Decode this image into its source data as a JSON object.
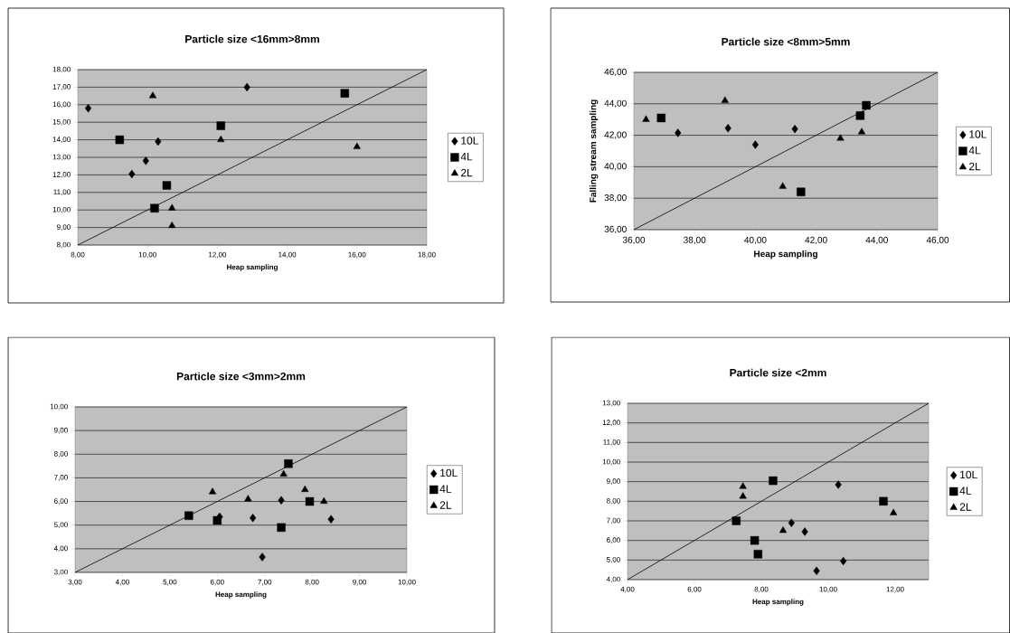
{
  "chart_data": [
    {
      "type": "scatter",
      "title": "Particle size <16mm>8mm",
      "xlabel": "Heap sampling",
      "xlim": [
        8,
        18
      ],
      "ylim": [
        8,
        18
      ],
      "grid": "y",
      "legend": "right",
      "xticks": [
        {
          "value": 8,
          "label": "8,00"
        },
        {
          "value": 10,
          "label": "10,00"
        },
        {
          "value": 12,
          "label": "12,00"
        },
        {
          "value": 14,
          "label": "14,00"
        },
        {
          "value": 16,
          "label": "16,00"
        },
        {
          "value": 18,
          "label": "18,00"
        }
      ],
      "yticks": [
        {
          "value": 8,
          "label": "8,00"
        },
        {
          "value": 9,
          "label": "9,00"
        },
        {
          "value": 10,
          "label": "10,00"
        },
        {
          "value": 11,
          "label": "11,00"
        },
        {
          "value": 12,
          "label": "12,00"
        },
        {
          "value": 13,
          "label": "13,00"
        },
        {
          "value": 14,
          "label": "14,00"
        },
        {
          "value": 15,
          "label": "15,00"
        },
        {
          "value": 16,
          "label": "16,00"
        },
        {
          "value": 17,
          "label": "17,00"
        },
        {
          "value": 18,
          "label": "18,00"
        }
      ],
      "series": [
        {
          "name": "10L",
          "color": "#000000",
          "marker": "diamond",
          "x": [
            8.3,
            12.85,
            10.3,
            9.95,
            9.55
          ],
          "values": [
            15.8,
            17.0,
            13.9,
            12.8,
            12.05
          ]
        },
        {
          "name": "4L",
          "color": "#000000",
          "marker": "square",
          "x": [
            9.2,
            15.65,
            12.1,
            10.55,
            10.2
          ],
          "values": [
            14.0,
            16.65,
            14.8,
            11.4,
            10.1
          ]
        },
        {
          "name": "2L",
          "color": "#000000",
          "marker": "triangle",
          "x": [
            10.15,
            12.1,
            16.0,
            10.7,
            10.7
          ],
          "values": [
            16.5,
            14.0,
            13.6,
            10.1,
            9.1
          ]
        },
        {
          "type": "line",
          "color": "#000000",
          "marker": "none",
          "x": [
            8,
            18
          ],
          "values": [
            8,
            18
          ]
        }
      ]
    },
    {
      "type": "scatter",
      "title": "Particle size <8mm>5mm",
      "xlabel": "Heap sampling",
      "ylabel": "Falling stream sampling",
      "xlim": [
        36,
        46
      ],
      "ylim": [
        36,
        46
      ],
      "grid": "y",
      "legend": "right",
      "xticks": [
        {
          "value": 36,
          "label": "36,00"
        },
        {
          "value": 38,
          "label": "38,00"
        },
        {
          "value": 40,
          "label": "40,00"
        },
        {
          "value": 42,
          "label": "42,00"
        },
        {
          "value": 44,
          "label": "44,00"
        },
        {
          "value": 46,
          "label": "46,00"
        }
      ],
      "yticks": [
        {
          "value": 36,
          "label": "36,00"
        },
        {
          "value": 38,
          "label": "38,00"
        },
        {
          "value": 40,
          "label": "40,00"
        },
        {
          "value": 42,
          "label": "42,00"
        },
        {
          "value": 44,
          "label": "44,00"
        },
        {
          "value": 46,
          "label": "46,00"
        }
      ],
      "series": [
        {
          "name": "10L",
          "color": "#000000",
          "marker": "diamond",
          "x": [
            37.45,
            39.1,
            40.0,
            41.3
          ],
          "values": [
            42.15,
            42.45,
            41.4,
            42.4
          ]
        },
        {
          "name": "4L",
          "color": "#000000",
          "marker": "square",
          "x": [
            36.9,
            41.5,
            43.45,
            43.65
          ],
          "values": [
            43.1,
            38.4,
            43.25,
            43.9
          ]
        },
        {
          "name": "2L",
          "color": "#000000",
          "marker": "triangle",
          "x": [
            36.4,
            39.0,
            40.9,
            42.8,
            43.5
          ],
          "values": [
            43.0,
            44.2,
            38.75,
            41.8,
            42.2
          ]
        },
        {
          "type": "line",
          "color": "#000000",
          "marker": "none",
          "x": [
            36,
            46
          ],
          "values": [
            36,
            46
          ]
        }
      ]
    },
    {
      "type": "scatter",
      "title": "Particle size <3mm>2mm",
      "xlabel": "Heap sampling",
      "xlim": [
        3,
        10
      ],
      "ylim": [
        3,
        10
      ],
      "grid": "y",
      "legend": "right",
      "xticks": [
        {
          "value": 3,
          "label": "3,00"
        },
        {
          "value": 4,
          "label": "4,00"
        },
        {
          "value": 5,
          "label": "5,00"
        },
        {
          "value": 6,
          "label": "6,00"
        },
        {
          "value": 7,
          "label": "7,00"
        },
        {
          "value": 8,
          "label": "8,00"
        },
        {
          "value": 9,
          "label": "9,00"
        },
        {
          "value": 10,
          "label": "10,00"
        }
      ],
      "yticks": [
        {
          "value": 3,
          "label": "3,00"
        },
        {
          "value": 4,
          "label": "4,00"
        },
        {
          "value": 5,
          "label": "5,00"
        },
        {
          "value": 6,
          "label": "6,00"
        },
        {
          "value": 7,
          "label": "7,00"
        },
        {
          "value": 8,
          "label": "8,00"
        },
        {
          "value": 9,
          "label": "9,00"
        },
        {
          "value": 10,
          "label": "10,00"
        }
      ],
      "series": [
        {
          "name": "10L",
          "color": "#000000",
          "marker": "diamond",
          "x": [
            6.05,
            6.75,
            7.35,
            6.95,
            8.4
          ],
          "values": [
            5.35,
            5.3,
            6.05,
            3.65,
            5.25
          ]
        },
        {
          "name": "4L",
          "color": "#000000",
          "marker": "square",
          "x": [
            5.4,
            6.0,
            7.35,
            7.5,
            7.95
          ],
          "values": [
            5.4,
            5.2,
            4.9,
            7.6,
            6.0
          ]
        },
        {
          "name": "2L",
          "color": "#000000",
          "marker": "triangle",
          "x": [
            5.9,
            6.65,
            7.4,
            7.85,
            8.25
          ],
          "values": [
            6.4,
            6.1,
            7.15,
            6.5,
            6.0
          ]
        },
        {
          "type": "line",
          "color": "#000000",
          "marker": "none",
          "x": [
            3,
            10
          ],
          "values": [
            3,
            10
          ]
        }
      ]
    },
    {
      "type": "scatter",
      "title": "Particle size <2mm",
      "xlabel": "Heap sampling",
      "xlim": [
        4,
        13
      ],
      "ylim": [
        4,
        13
      ],
      "grid": "y",
      "legend": "right",
      "xticks": [
        {
          "value": 4,
          "label": "4,00"
        },
        {
          "value": 6,
          "label": "6,00"
        },
        {
          "value": 8,
          "label": "8,00"
        },
        {
          "value": 10,
          "label": "10,00"
        },
        {
          "value": 12,
          "label": "12,00"
        }
      ],
      "yticks": [
        {
          "value": 4,
          "label": "4,00"
        },
        {
          "value": 5,
          "label": "5,00"
        },
        {
          "value": 6,
          "label": "6,00"
        },
        {
          "value": 7,
          "label": "7,00"
        },
        {
          "value": 8,
          "label": "8,00"
        },
        {
          "value": 9,
          "label": "9,00"
        },
        {
          "value": 10,
          "label": "10,00"
        },
        {
          "value": 11,
          "label": "11,00"
        },
        {
          "value": 12,
          "label": "12,00"
        },
        {
          "value": 13,
          "label": "13,00"
        }
      ],
      "series": [
        {
          "name": "10L",
          "color": "#000000",
          "marker": "diamond",
          "x": [
            10.3,
            8.9,
            9.3,
            9.65,
            10.45
          ],
          "values": [
            8.85,
            6.9,
            6.45,
            4.45,
            4.95
          ]
        },
        {
          "name": "4L",
          "color": "#000000",
          "marker": "square",
          "x": [
            7.25,
            8.35,
            7.8,
            7.9,
            11.65
          ],
          "values": [
            7.0,
            9.05,
            6.0,
            5.3,
            8.0
          ]
        },
        {
          "name": "2L",
          "color": "#000000",
          "marker": "triangle",
          "x": [
            7.45,
            7.45,
            8.65,
            11.95
          ],
          "values": [
            8.75,
            8.25,
            6.5,
            7.4
          ]
        },
        {
          "type": "line",
          "color": "#000000",
          "marker": "none",
          "x": [
            4,
            13
          ],
          "values": [
            4,
            13
          ]
        }
      ]
    }
  ]
}
